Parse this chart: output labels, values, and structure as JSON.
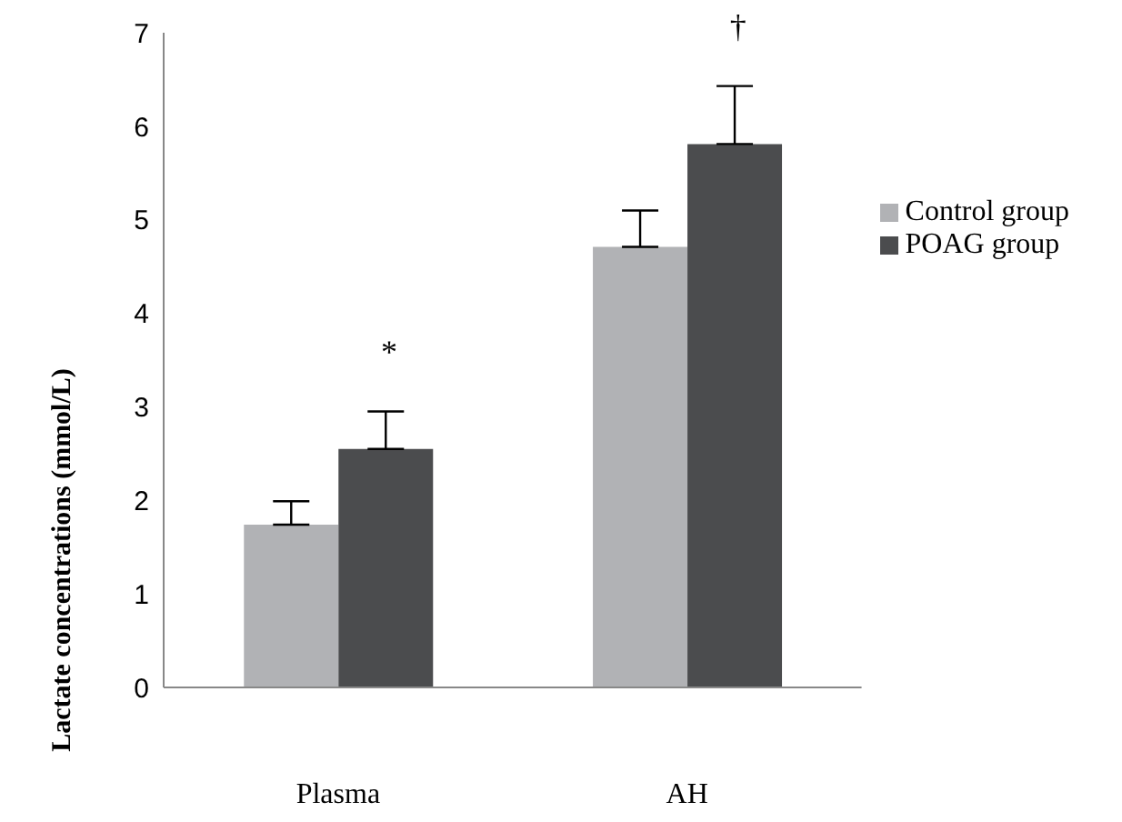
{
  "chart_data": {
    "type": "bar",
    "ylabel": "Lactate concentrations (mmol/L)",
    "categories": [
      "Plasma",
      "AH"
    ],
    "series": [
      {
        "name": "Control group",
        "color": "#b1b2b5",
        "values": [
          1.74,
          4.71
        ],
        "errors": [
          [
            1.74,
            1.99
          ],
          [
            4.71,
            5.1
          ]
        ]
      },
      {
        "name": "POAG group",
        "color": "#4b4c4e",
        "values": [
          2.55,
          5.81
        ],
        "errors": [
          [
            2.55,
            2.95
          ],
          [
            5.81,
            6.43
          ]
        ]
      }
    ],
    "annotations": [
      "*",
      "†"
    ],
    "ylim": [
      0,
      7
    ],
    "yticks": [
      0,
      1,
      2,
      3,
      4,
      5,
      6,
      7
    ],
    "grid": false,
    "legend": "right"
  }
}
